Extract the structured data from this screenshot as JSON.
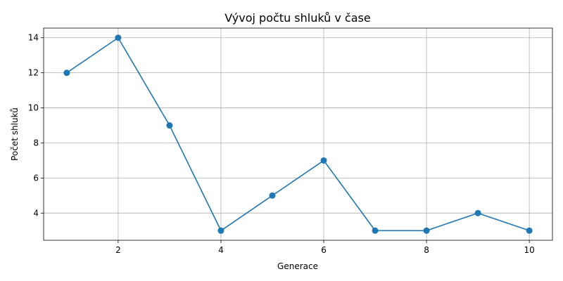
{
  "chart_data": {
    "type": "line",
    "title": "Vývoj počtu shluků v čase",
    "xlabel": "Generace",
    "ylabel": "Počet shluků",
    "x": [
      1,
      2,
      3,
      4,
      5,
      6,
      7,
      8,
      9,
      10
    ],
    "series": [
      {
        "values": [
          12,
          14,
          9,
          3,
          5,
          7,
          3,
          3,
          4,
          3
        ],
        "color": "#1f77b4"
      }
    ],
    "xlim": [
      0.55,
      10.45
    ],
    "ylim": [
      2.45,
      14.55
    ],
    "xticks": [
      2,
      4,
      6,
      8,
      10
    ],
    "yticks": [
      4,
      6,
      8,
      10,
      12,
      14
    ],
    "grid": true
  }
}
